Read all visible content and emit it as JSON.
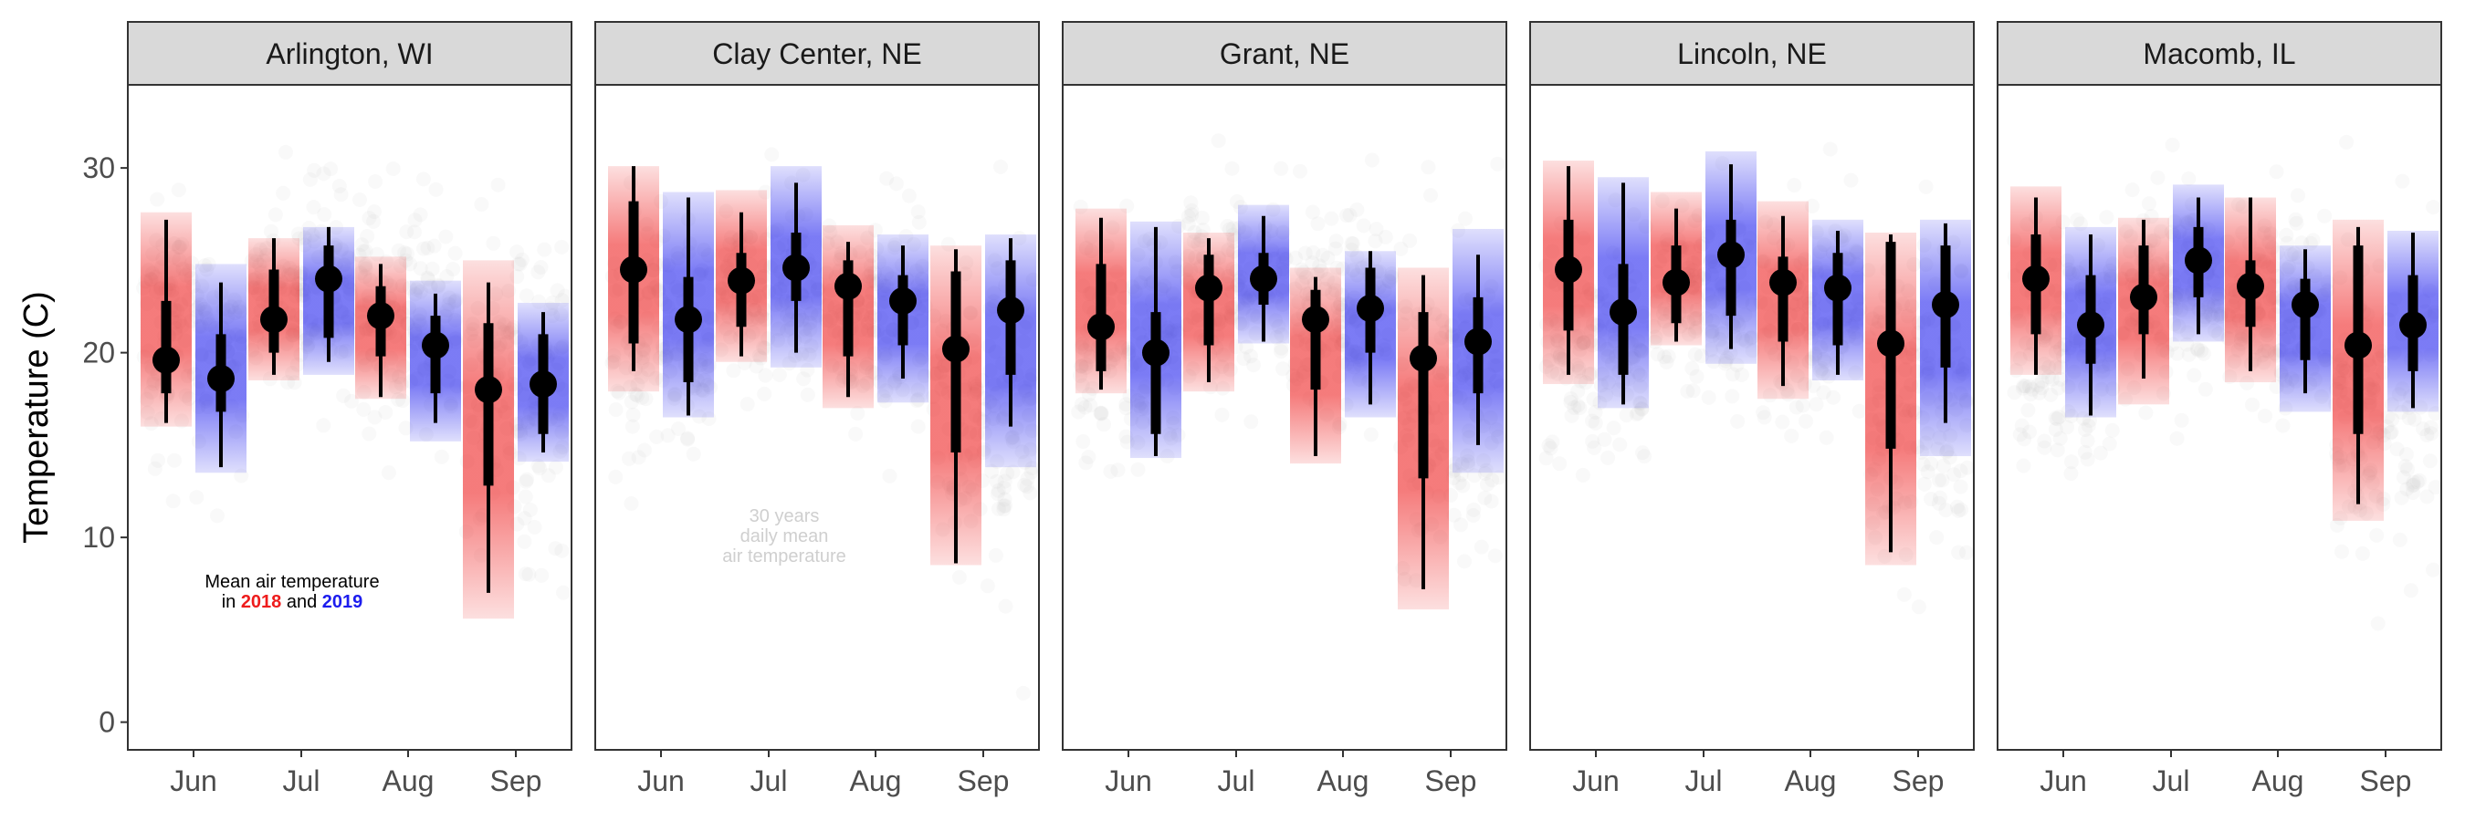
{
  "chart_data": {
    "type": "interval-dot",
    "ylabel": "Temperature (C)",
    "ylim": [
      -1.5,
      34.5
    ],
    "yticks": [
      0,
      10,
      20,
      30
    ],
    "categories": [
      "Jun",
      "Jul",
      "Aug",
      "Sep"
    ],
    "legend_position": "inside first panel, bottom-left",
    "series": [
      {
        "name": "2018",
        "color": "#ee1c1c"
      },
      {
        "name": "2019",
        "color": "#1c1cee"
      }
    ],
    "annotation": {
      "line1": "Mean air temperature",
      "prefix": "in",
      "year_a": "2018",
      "conj": "and",
      "year_b": "2019"
    },
    "background_note": {
      "line1": "30 years",
      "line2": "daily mean",
      "line3": "air temperature"
    },
    "background_point_color": "#bdbdbd",
    "panels": [
      {
        "site": "Arlington, WI",
        "data": [
          {
            "month": "Jun",
            "year": "2018",
            "mean": 19.6,
            "inner": [
              17.8,
              22.8
            ],
            "outer": [
              16.2,
              27.2
            ],
            "band": [
              16.0,
              27.6
            ]
          },
          {
            "month": "Jun",
            "year": "2019",
            "mean": 18.6,
            "inner": [
              16.8,
              21.0
            ],
            "outer": [
              13.8,
              23.8
            ],
            "band": [
              13.5,
              24.8
            ]
          },
          {
            "month": "Jul",
            "year": "2018",
            "mean": 21.8,
            "inner": [
              20.0,
              24.5
            ],
            "outer": [
              18.8,
              26.2
            ],
            "band": [
              18.5,
              26.2
            ]
          },
          {
            "month": "Jul",
            "year": "2019",
            "mean": 24.0,
            "inner": [
              20.8,
              25.8
            ],
            "outer": [
              19.5,
              26.8
            ],
            "band": [
              18.8,
              26.8
            ]
          },
          {
            "month": "Aug",
            "year": "2018",
            "mean": 22.0,
            "inner": [
              19.8,
              23.6
            ],
            "outer": [
              17.6,
              24.8
            ],
            "band": [
              17.5,
              25.2
            ]
          },
          {
            "month": "Aug",
            "year": "2019",
            "mean": 20.4,
            "inner": [
              17.8,
              22.0
            ],
            "outer": [
              16.2,
              23.2
            ],
            "band": [
              15.2,
              23.9
            ]
          },
          {
            "month": "Sep",
            "year": "2018",
            "mean": 18.0,
            "inner": [
              12.8,
              21.6
            ],
            "outer": [
              7.0,
              23.8
            ],
            "band": [
              5.6,
              25.0
            ]
          },
          {
            "month": "Sep",
            "year": "2019",
            "mean": 18.3,
            "inner": [
              15.6,
              21.0
            ],
            "outer": [
              14.6,
              22.2
            ],
            "band": [
              14.1,
              22.7
            ]
          }
        ]
      },
      {
        "site": "Clay Center, NE",
        "data": [
          {
            "month": "Jun",
            "year": "2018",
            "mean": 24.5,
            "inner": [
              20.5,
              28.2
            ],
            "outer": [
              19.0,
              30.1
            ],
            "band": [
              17.9,
              30.1
            ]
          },
          {
            "month": "Jun",
            "year": "2019",
            "mean": 21.8,
            "inner": [
              18.4,
              24.1
            ],
            "outer": [
              16.6,
              28.4
            ],
            "band": [
              16.5,
              28.7
            ]
          },
          {
            "month": "Jul",
            "year": "2018",
            "mean": 23.9,
            "inner": [
              21.4,
              25.4
            ],
            "outer": [
              19.8,
              27.6
            ],
            "band": [
              19.5,
              28.8
            ]
          },
          {
            "month": "Jul",
            "year": "2019",
            "mean": 24.6,
            "inner": [
              22.8,
              26.5
            ],
            "outer": [
              20.0,
              29.2
            ],
            "band": [
              19.2,
              30.1
            ]
          },
          {
            "month": "Aug",
            "year": "2018",
            "mean": 23.6,
            "inner": [
              19.8,
              25.0
            ],
            "outer": [
              17.6,
              26.0
            ],
            "band": [
              17.0,
              26.9
            ]
          },
          {
            "month": "Aug",
            "year": "2019",
            "mean": 22.8,
            "inner": [
              20.4,
              24.2
            ],
            "outer": [
              18.6,
              25.8
            ],
            "band": [
              17.3,
              26.4
            ]
          },
          {
            "month": "Sep",
            "year": "2018",
            "mean": 20.2,
            "inner": [
              14.6,
              24.4
            ],
            "outer": [
              8.6,
              25.6
            ],
            "band": [
              8.5,
              25.8
            ]
          },
          {
            "month": "Sep",
            "year": "2019",
            "mean": 22.3,
            "inner": [
              18.8,
              25.0
            ],
            "outer": [
              16.0,
              26.2
            ],
            "band": [
              13.8,
              26.4
            ]
          }
        ]
      },
      {
        "site": "Grant, NE",
        "data": [
          {
            "month": "Jun",
            "year": "2018",
            "mean": 21.4,
            "inner": [
              19.0,
              24.8
            ],
            "outer": [
              18.0,
              27.3
            ],
            "band": [
              17.8,
              27.8
            ]
          },
          {
            "month": "Jun",
            "year": "2019",
            "mean": 20.0,
            "inner": [
              15.6,
              22.2
            ],
            "outer": [
              14.4,
              26.8
            ],
            "band": [
              14.3,
              27.1
            ]
          },
          {
            "month": "Jul",
            "year": "2018",
            "mean": 23.5,
            "inner": [
              20.4,
              25.3
            ],
            "outer": [
              18.4,
              26.2
            ],
            "band": [
              17.9,
              26.5
            ]
          },
          {
            "month": "Jul",
            "year": "2019",
            "mean": 24.0,
            "inner": [
              22.6,
              25.4
            ],
            "outer": [
              20.6,
              27.4
            ],
            "band": [
              20.5,
              28.0
            ]
          },
          {
            "month": "Aug",
            "year": "2018",
            "mean": 21.8,
            "inner": [
              18.0,
              23.4
            ],
            "outer": [
              14.4,
              24.1
            ],
            "band": [
              14.0,
              24.6
            ]
          },
          {
            "month": "Aug",
            "year": "2019",
            "mean": 22.4,
            "inner": [
              20.0,
              24.6
            ],
            "outer": [
              17.2,
              25.5
            ],
            "band": [
              16.5,
              25.5
            ]
          },
          {
            "month": "Sep",
            "year": "2018",
            "mean": 19.7,
            "inner": [
              13.2,
              22.2
            ],
            "outer": [
              7.2,
              24.2
            ],
            "band": [
              6.1,
              24.6
            ]
          },
          {
            "month": "Sep",
            "year": "2019",
            "mean": 20.6,
            "inner": [
              17.8,
              23.0
            ],
            "outer": [
              15.0,
              25.3
            ],
            "band": [
              13.5,
              26.7
            ]
          }
        ]
      },
      {
        "site": "Lincoln, NE",
        "data": [
          {
            "month": "Jun",
            "year": "2018",
            "mean": 24.5,
            "inner": [
              21.2,
              27.2
            ],
            "outer": [
              18.8,
              30.1
            ],
            "band": [
              18.3,
              30.4
            ]
          },
          {
            "month": "Jun",
            "year": "2019",
            "mean": 22.2,
            "inner": [
              18.8,
              24.8
            ],
            "outer": [
              17.2,
              29.2
            ],
            "band": [
              17.0,
              29.5
            ]
          },
          {
            "month": "Jul",
            "year": "2018",
            "mean": 23.8,
            "inner": [
              21.6,
              25.8
            ],
            "outer": [
              20.6,
              27.8
            ],
            "band": [
              20.4,
              28.7
            ]
          },
          {
            "month": "Jul",
            "year": "2019",
            "mean": 25.3,
            "inner": [
              22.0,
              27.2
            ],
            "outer": [
              20.2,
              30.2
            ],
            "band": [
              19.4,
              30.9
            ]
          },
          {
            "month": "Aug",
            "year": "2018",
            "mean": 23.8,
            "inner": [
              20.6,
              25.2
            ],
            "outer": [
              18.2,
              27.4
            ],
            "band": [
              17.5,
              28.2
            ]
          },
          {
            "month": "Aug",
            "year": "2019",
            "mean": 23.5,
            "inner": [
              20.4,
              25.4
            ],
            "outer": [
              18.8,
              26.6
            ],
            "band": [
              18.5,
              27.2
            ]
          },
          {
            "month": "Sep",
            "year": "2018",
            "mean": 20.5,
            "inner": [
              14.8,
              26.0
            ],
            "outer": [
              9.2,
              26.4
            ],
            "band": [
              8.5,
              26.5
            ]
          },
          {
            "month": "Sep",
            "year": "2019",
            "mean": 22.6,
            "inner": [
              19.2,
              25.8
            ],
            "outer": [
              16.2,
              27.0
            ],
            "band": [
              14.4,
              27.2
            ]
          }
        ]
      },
      {
        "site": "Macomb, IL",
        "data": [
          {
            "month": "Jun",
            "year": "2018",
            "mean": 24.0,
            "inner": [
              21.0,
              26.4
            ],
            "outer": [
              18.8,
              28.4
            ],
            "band": [
              18.8,
              29.0
            ]
          },
          {
            "month": "Jun",
            "year": "2019",
            "mean": 21.5,
            "inner": [
              19.4,
              24.2
            ],
            "outer": [
              16.6,
              26.4
            ],
            "band": [
              16.5,
              26.8
            ]
          },
          {
            "month": "Jul",
            "year": "2018",
            "mean": 23.0,
            "inner": [
              21.0,
              25.8
            ],
            "outer": [
              18.6,
              27.2
            ],
            "band": [
              17.2,
              27.3
            ]
          },
          {
            "month": "Jul",
            "year": "2019",
            "mean": 25.0,
            "inner": [
              23.0,
              26.8
            ],
            "outer": [
              21.0,
              28.4
            ],
            "band": [
              20.6,
              29.1
            ]
          },
          {
            "month": "Aug",
            "year": "2018",
            "mean": 23.6,
            "inner": [
              21.4,
              25.0
            ],
            "outer": [
              19.0,
              28.4
            ],
            "band": [
              18.4,
              28.4
            ]
          },
          {
            "month": "Aug",
            "year": "2019",
            "mean": 22.6,
            "inner": [
              19.6,
              24.0
            ],
            "outer": [
              17.8,
              25.6
            ],
            "band": [
              16.8,
              25.8
            ]
          },
          {
            "month": "Sep",
            "year": "2018",
            "mean": 20.4,
            "inner": [
              15.6,
              25.8
            ],
            "outer": [
              11.8,
              26.8
            ],
            "band": [
              10.9,
              27.2
            ]
          },
          {
            "month": "Sep",
            "year": "2019",
            "mean": 21.5,
            "inner": [
              19.0,
              24.2
            ],
            "outer": [
              17.0,
              26.5
            ],
            "band": [
              16.8,
              26.6
            ]
          }
        ]
      }
    ]
  }
}
